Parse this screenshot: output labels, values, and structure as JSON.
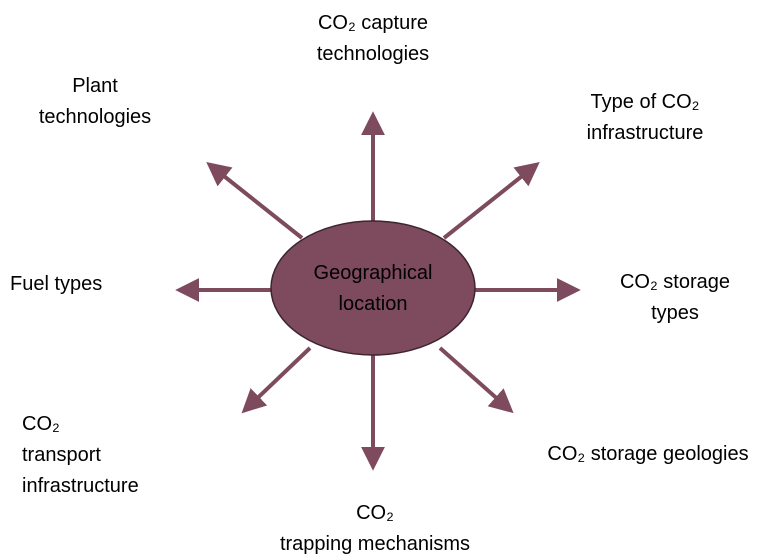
{
  "center": {
    "lines": [
      "Geographical",
      "location"
    ]
  },
  "nodes": [
    {
      "lines": [
        "CO₂ capture",
        "technologies"
      ]
    },
    {
      "lines": [
        "Plant",
        "technologies"
      ]
    },
    {
      "lines": [
        "Type of CO₂",
        "infrastructure"
      ]
    },
    {
      "lines": [
        "Fuel types"
      ]
    },
    {
      "lines": [
        "CO₂ storage",
        "types"
      ]
    },
    {
      "lines": [
        "CO₂",
        "transport",
        "infrastructure"
      ]
    },
    {
      "lines": [
        "CO₂ storage geologies"
      ]
    },
    {
      "lines": [
        "CO₂",
        "trapping mechanisms"
      ]
    }
  ]
}
